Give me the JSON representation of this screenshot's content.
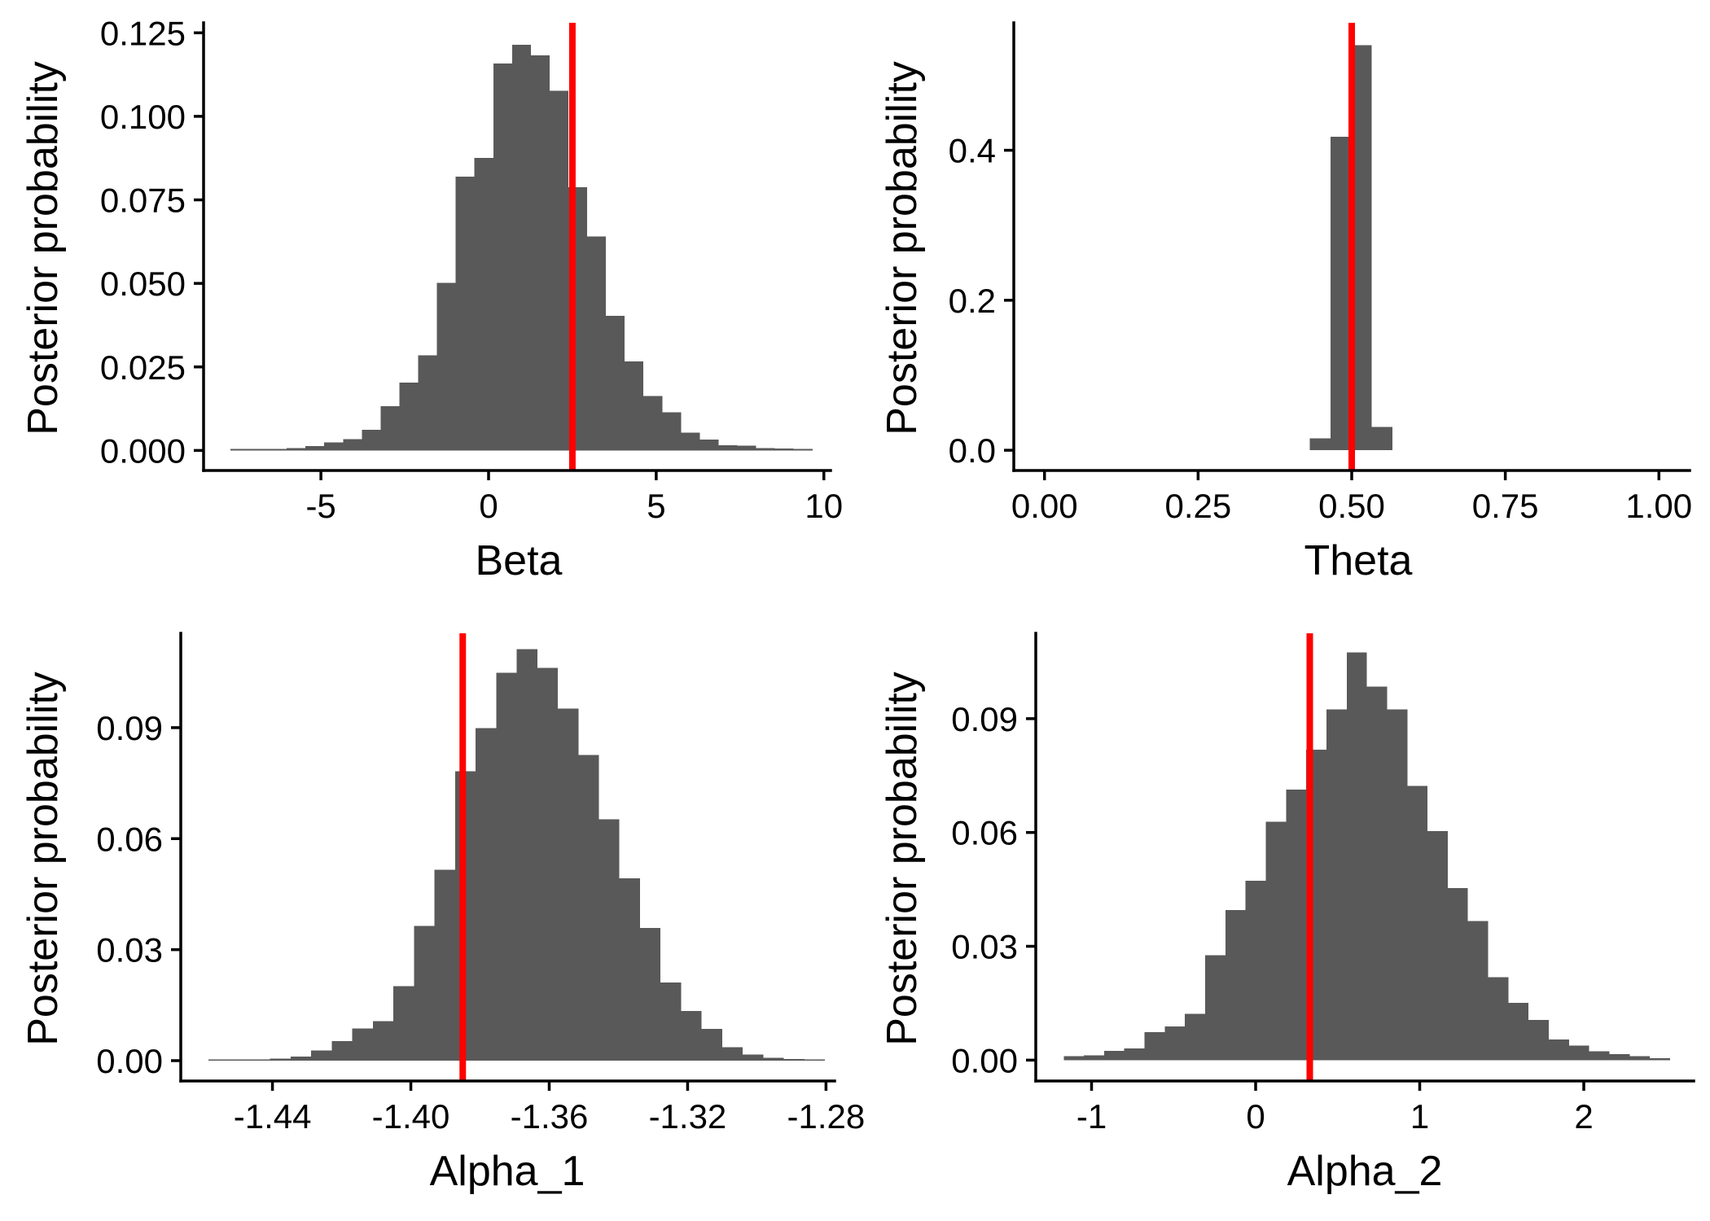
{
  "chart_data": [
    {
      "type": "bar",
      "xlabel": "Beta",
      "ylabel": "Posterior probability",
      "xlim": [
        -8.5,
        10.2
      ],
      "ylim": [
        -0.006,
        0.128
      ],
      "xticks": [
        -5,
        0,
        5,
        10
      ],
      "xtick_labels": [
        "-5",
        "0",
        "5",
        "10"
      ],
      "yticks": [
        0.0,
        0.025,
        0.05,
        0.075,
        0.1,
        0.125
      ],
      "ytick_labels": [
        "0.000",
        "0.025",
        "0.050",
        "0.075",
        "0.100",
        "0.125"
      ],
      "bin_start": -7.7,
      "bin_width": 0.56,
      "values": [
        0.0004,
        0.0004,
        0.0005,
        0.0007,
        0.0013,
        0.0024,
        0.0034,
        0.0062,
        0.0132,
        0.0203,
        0.0285,
        0.0502,
        0.0819,
        0.0875,
        0.1158,
        0.1214,
        0.1183,
        0.1076,
        0.0788,
        0.0641,
        0.0403,
        0.0266,
        0.0163,
        0.0114,
        0.0053,
        0.0033,
        0.0016,
        0.0014,
        0.0007,
        0.0006,
        0.0005
      ],
      "reference_line": 2.5,
      "reference_color": "#ff0000",
      "bar_color": "#595959"
    },
    {
      "type": "bar",
      "xlabel": "Theta",
      "ylabel": "Posterior probability",
      "xlim": [
        -0.05,
        1.05
      ],
      "ylim": [
        -0.027,
        0.57
      ],
      "xticks": [
        0.0,
        0.25,
        0.5,
        0.75,
        1.0
      ],
      "xtick_labels": [
        "0.00",
        "0.25",
        "0.50",
        "0.75",
        "1.00"
      ],
      "yticks": [
        0.0,
        0.2,
        0.4
      ],
      "ytick_labels": [
        "0.0",
        "0.2",
        "0.4"
      ],
      "bin_start": 0.432,
      "bin_width": 0.0335,
      "values": [
        0.016,
        0.418,
        0.54,
        0.031
      ],
      "reference_line": 0.5,
      "reference_color": "#ff0000",
      "bar_color": "#595959"
    },
    {
      "type": "bar",
      "xlabel": "Alpha_1",
      "ylabel": "Posterior probability",
      "xlim": [
        -1.4665,
        -1.2775
      ],
      "ylim": [
        -0.0055,
        0.1155
      ],
      "xticks": [
        -1.44,
        -1.4,
        -1.36,
        -1.32,
        -1.28
      ],
      "xtick_labels": [
        "-1.44",
        "-1.40",
        "-1.36",
        "-1.32",
        "-1.28"
      ],
      "yticks": [
        0.0,
        0.03,
        0.06,
        0.09
      ],
      "ytick_labels": [
        "0.00",
        "0.03",
        "0.06",
        "0.09"
      ],
      "bin_start": -1.4585,
      "bin_width": 0.00594,
      "values": [
        0.0003,
        0.0001,
        0.0002,
        0.0006,
        0.0011,
        0.0027,
        0.0053,
        0.0087,
        0.0107,
        0.0201,
        0.0364,
        0.0516,
        0.0782,
        0.0899,
        0.1048,
        0.1112,
        0.1062,
        0.0952,
        0.0826,
        0.0652,
        0.0493,
        0.0359,
        0.0211,
        0.0134,
        0.0086,
        0.0036,
        0.0016,
        0.0008,
        0.0004,
        0.0002
      ],
      "reference_line": -1.385,
      "reference_color": "#ff0000",
      "bar_color": "#595959"
    },
    {
      "type": "bar",
      "xlabel": "Alpha_2",
      "ylabel": "Posterior probability",
      "xlim": [
        -1.34,
        2.67
      ],
      "ylim": [
        -0.0055,
        0.1125
      ],
      "xticks": [
        -1,
        0,
        1,
        2
      ],
      "xtick_labels": [
        "-1",
        "0",
        "1",
        "2"
      ],
      "yticks": [
        0.0,
        0.03,
        0.06,
        0.09
      ],
      "ytick_labels": [
        "0.00",
        "0.03",
        "0.06",
        "0.09"
      ],
      "bin_start": -1.17,
      "bin_width": 0.1232,
      "values": [
        0.001,
        0.0013,
        0.0024,
        0.0031,
        0.0074,
        0.0089,
        0.0122,
        0.0276,
        0.0396,
        0.0473,
        0.0628,
        0.0713,
        0.0818,
        0.0924,
        0.1075,
        0.0985,
        0.0924,
        0.0723,
        0.0604,
        0.0453,
        0.0367,
        0.0219,
        0.0151,
        0.0106,
        0.0054,
        0.0038,
        0.0023,
        0.0016,
        0.001,
        0.0005
      ],
      "reference_line": 0.33,
      "reference_color": "#ff0000",
      "bar_color": "#595959"
    }
  ]
}
